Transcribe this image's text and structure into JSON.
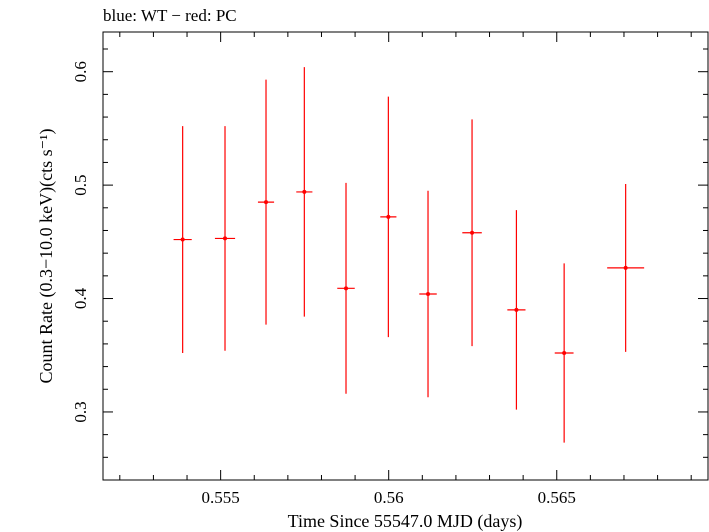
{
  "chart_data": {
    "type": "scatter",
    "title": "blue: WT − red: PC",
    "xlabel": "Time Since 55547.0 MJD (days)",
    "ylabel": "Count Rate (0.3−10.0 keV)(cts s⁻¹)",
    "xlim": [
      0.5515,
      0.5695
    ],
    "ylim": [
      0.24,
      0.635
    ],
    "x_ticks": [
      0.555,
      0.56,
      0.565
    ],
    "x_tick_labels": [
      "0.555",
      "0.56",
      "0.565"
    ],
    "y_ticks": [
      0.3,
      0.4,
      0.5,
      0.6
    ],
    "y_tick_labels": [
      "0.3",
      "0.4",
      "0.5",
      "0.6"
    ],
    "grid": false,
    "series": [
      {
        "color": "#ff0000",
        "points": [
          {
            "x": 0.55387,
            "y": 0.452,
            "xerr": 0.00027,
            "yerr_low": 0.1,
            "yerr_high": 0.1
          },
          {
            "x": 0.55513,
            "y": 0.453,
            "xerr": 0.0003,
            "yerr_low": 0.099,
            "yerr_high": 0.099
          },
          {
            "x": 0.55635,
            "y": 0.485,
            "xerr": 0.00024,
            "yerr_low": 0.108,
            "yerr_high": 0.108
          },
          {
            "x": 0.55749,
            "y": 0.494,
            "xerr": 0.00024,
            "yerr_low": 0.11,
            "yerr_high": 0.11
          },
          {
            "x": 0.55873,
            "y": 0.409,
            "xerr": 0.00026,
            "yerr_low": 0.093,
            "yerr_high": 0.093
          },
          {
            "x": 0.55999,
            "y": 0.472,
            "xerr": 0.00024,
            "yerr_low": 0.106,
            "yerr_high": 0.106
          },
          {
            "x": 0.56117,
            "y": 0.404,
            "xerr": 0.00026,
            "yerr_low": 0.091,
            "yerr_high": 0.091
          },
          {
            "x": 0.56248,
            "y": 0.458,
            "xerr": 0.00029,
            "yerr_low": 0.1,
            "yerr_high": 0.1
          },
          {
            "x": 0.5638,
            "y": 0.39,
            "xerr": 0.00027,
            "yerr_low": 0.088,
            "yerr_high": 0.088
          },
          {
            "x": 0.56522,
            "y": 0.352,
            "xerr": 0.00028,
            "yerr_low": 0.079,
            "yerr_high": 0.079
          },
          {
            "x": 0.56705,
            "y": 0.427,
            "xerr": 0.00055,
            "yerr_low": 0.074,
            "yerr_high": 0.074
          }
        ]
      }
    ]
  }
}
